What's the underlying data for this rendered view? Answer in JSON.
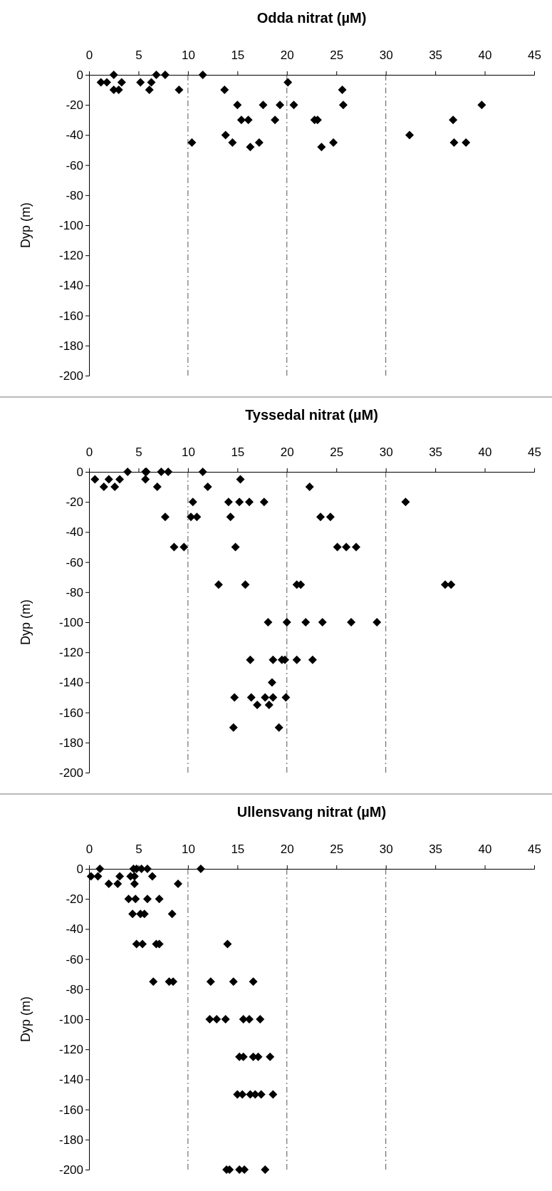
{
  "chart_data": [
    {
      "type": "scatter",
      "title": "Odda nitrat (µM)",
      "ylabel": "Dyp (m)",
      "xlim": [
        0,
        45
      ],
      "xticks": [
        0,
        5,
        10,
        15,
        20,
        25,
        30,
        35,
        40,
        45
      ],
      "ylim": [
        -200,
        0
      ],
      "yticks": [
        0,
        -20,
        -40,
        -60,
        -80,
        -100,
        -120,
        -140,
        -160,
        -180,
        -200
      ],
      "marker": "diamond",
      "grid": false,
      "ref_lines": [
        {
          "axis": "x",
          "value": 10,
          "line_style": "dashed",
          "color": "#555555"
        },
        {
          "axis": "x",
          "value": 20,
          "line_style": "dashed",
          "color": "#555555"
        },
        {
          "axis": "x",
          "value": 30,
          "line_style": "dashed",
          "color": "#555555"
        }
      ],
      "series": [
        {
          "color": "#000000",
          "x": [
            1.2,
            1.8,
            2.5,
            2.5,
            3.0,
            3.3,
            5.2,
            6.1,
            6.3,
            6.8,
            7.7,
            9.1,
            10.4,
            11.5,
            13.7,
            13.8,
            14.5,
            15.0,
            15.4,
            16.1,
            16.3,
            17.2,
            17.6,
            18.8,
            19.3,
            20.1,
            20.7,
            22.8,
            23.1,
            23.5,
            24.7,
            25.6,
            25.7,
            32.4,
            36.8,
            36.9,
            38.1,
            39.7
          ],
          "values": [
            -5,
            -5,
            0,
            -10,
            -10,
            -5,
            -5,
            -10,
            -5,
            0,
            0,
            -10,
            -45,
            0,
            -10,
            -40,
            -45,
            -20,
            -30,
            -30,
            -48,
            -45,
            -20,
            -30,
            -20,
            -5,
            -20,
            -30,
            -30,
            -48,
            -45,
            -10,
            -20,
            -40,
            -30,
            -45,
            -45,
            -20
          ]
        }
      ]
    },
    {
      "type": "scatter",
      "title": "Tyssedal nitrat (µM)",
      "ylabel": "Dyp (m)",
      "xlim": [
        0,
        45
      ],
      "xticks": [
        0,
        5,
        10,
        15,
        20,
        25,
        30,
        35,
        40,
        45
      ],
      "ylim": [
        -200,
        0
      ],
      "yticks": [
        0,
        -20,
        -40,
        -60,
        -80,
        -100,
        -120,
        -140,
        -160,
        -180,
        -200
      ],
      "marker": "diamond",
      "grid": false,
      "ref_lines": [
        {
          "axis": "x",
          "value": 10,
          "line_style": "dashed",
          "color": "#555555"
        },
        {
          "axis": "x",
          "value": 20,
          "line_style": "dashed",
          "color": "#555555"
        },
        {
          "axis": "x",
          "value": 30,
          "line_style": "dashed",
          "color": "#555555"
        }
      ],
      "series": [
        {
          "color": "#000000",
          "x": [
            0.6,
            1.5,
            2.0,
            2.6,
            3.1,
            3.9,
            5.7,
            5.8,
            5.7,
            6.9,
            7.3,
            7.7,
            8.0,
            8.6,
            9.6,
            10.3,
            10.5,
            10.9,
            11.5,
            12.0,
            13.1,
            14.1,
            14.3,
            14.8,
            15.2,
            15.3,
            16.2,
            15.8,
            16.3,
            17.7,
            18.1,
            18.6,
            19.5,
            19.8,
            20.0,
            21.0,
            21.4,
            21.0,
            21.9,
            22.3,
            22.6,
            23.4,
            23.6,
            24.4,
            25.1,
            26.0,
            26.5,
            27.0,
            29.1,
            32.0,
            36.0,
            36.6,
            18.5,
            14.7,
            16.4,
            17.8,
            18.6,
            19.9,
            17.0,
            18.2,
            14.6,
            19.2
          ],
          "values": [
            -5,
            -10,
            -5,
            -10,
            -5,
            0,
            0,
            0,
            -5,
            -10,
            0,
            -30,
            0,
            -50,
            -50,
            -30,
            -20,
            -30,
            0,
            -10,
            -75,
            -20,
            -30,
            -50,
            -20,
            -5,
            -20,
            -75,
            -125,
            -20,
            -100,
            -125,
            -125,
            -125,
            -100,
            -75,
            -75,
            -125,
            -100,
            -10,
            -125,
            -30,
            -100,
            -30,
            -50,
            -50,
            -100,
            -50,
            -100,
            -20,
            -75,
            -75,
            -140,
            -150,
            -150,
            -150,
            -150,
            -150,
            -155,
            -155,
            -170,
            -170
          ]
        }
      ]
    },
    {
      "type": "scatter",
      "title": "Ullensvang nitrat (µM)",
      "ylabel": "Dyp (m)",
      "xlim": [
        0,
        45
      ],
      "xticks": [
        0,
        5,
        10,
        15,
        20,
        25,
        30,
        35,
        40,
        45
      ],
      "ylim": [
        -200,
        0
      ],
      "yticks": [
        0,
        -20,
        -40,
        -60,
        -80,
        -100,
        -120,
        -140,
        -160,
        -180,
        -200
      ],
      "marker": "diamond",
      "grid": false,
      "ref_lines": [
        {
          "axis": "x",
          "value": 10,
          "line_style": "dashed",
          "color": "#555555"
        },
        {
          "axis": "x",
          "value": 20,
          "line_style": "dashed",
          "color": "#555555"
        },
        {
          "axis": "x",
          "value": 30,
          "line_style": "dashed",
          "color": "#555555"
        }
      ],
      "series": [
        {
          "color": "#000000",
          "x": [
            1.1,
            4.5,
            4.8,
            5.3,
            5.9,
            11.3,
            0.2,
            0.9,
            3.1,
            4.2,
            4.6,
            6.4,
            2.0,
            2.9,
            4.6,
            9.0,
            4.0,
            4.7,
            5.9,
            7.1,
            4.4,
            5.2,
            5.6,
            8.4,
            4.8,
            5.4,
            6.8,
            7.1,
            14.0,
            6.5,
            8.1,
            8.5,
            12.3,
            14.6,
            16.6,
            12.2,
            12.9,
            13.8,
            15.6,
            16.2,
            17.3,
            15.2,
            15.6,
            16.6,
            17.1,
            18.3,
            15.0,
            15.5,
            16.3,
            16.8,
            17.4,
            18.6,
            13.9,
            14.2,
            15.2,
            15.7,
            17.8
          ],
          "values": [
            0,
            0,
            0,
            0,
            0,
            0,
            -5,
            -5,
            -5,
            -5,
            -5,
            -5,
            -10,
            -10,
            -10,
            -10,
            -20,
            -20,
            -20,
            -20,
            -30,
            -30,
            -30,
            -30,
            -50,
            -50,
            -50,
            -50,
            -50,
            -75,
            -75,
            -75,
            -75,
            -75,
            -75,
            -100,
            -100,
            -100,
            -100,
            -100,
            -100,
            -125,
            -125,
            -125,
            -125,
            -125,
            -150,
            -150,
            -150,
            -150,
            -150,
            -150,
            -200,
            -200,
            -200,
            -200,
            -200
          ]
        }
      ]
    }
  ]
}
